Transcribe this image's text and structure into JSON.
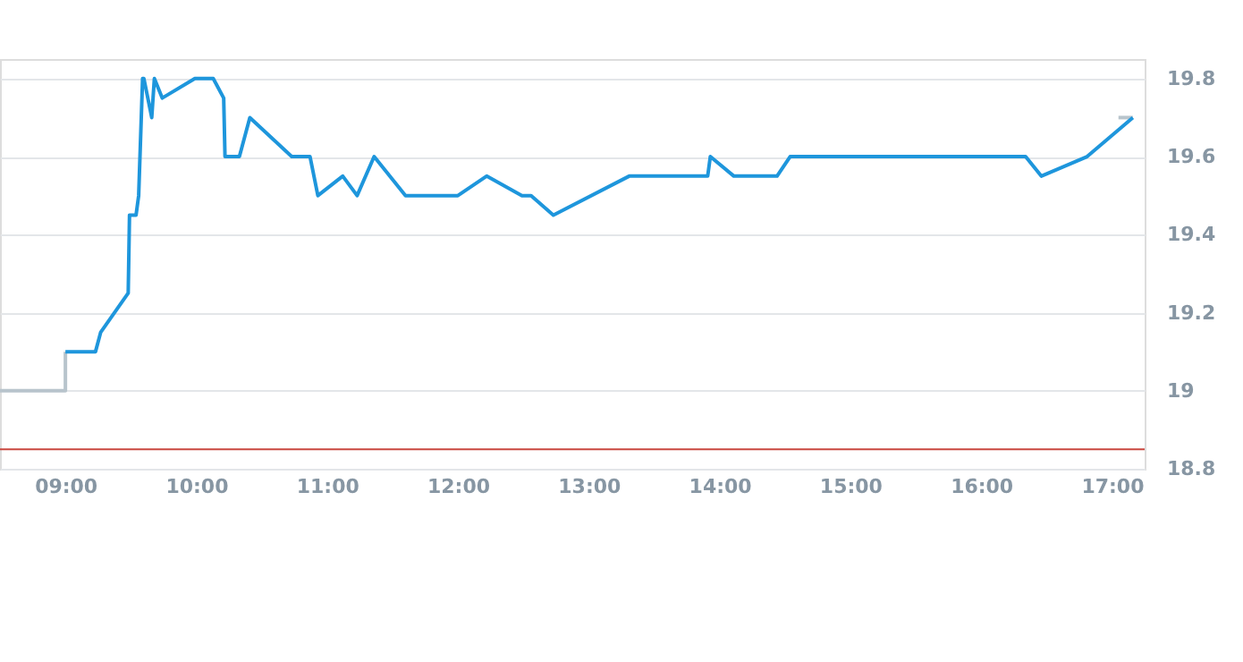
{
  "chart_data": {
    "type": "line",
    "series": [
      {
        "color": "#b8c4cc",
        "x": [
          8.5,
          9.0,
          9.0,
          null,
          17.05,
          17.16
        ],
        "values": [
          19.0,
          19.0,
          19.1,
          null,
          19.7,
          19.7
        ]
      },
      {
        "color": "#1e96dc",
        "x": [
          9.0,
          9.23,
          9.27,
          9.48,
          9.49,
          9.54,
          9.56,
          9.59,
          9.6,
          9.66,
          9.68,
          9.74,
          9.99,
          10.13,
          10.21,
          10.22,
          10.33,
          10.41,
          10.73,
          10.87,
          10.93,
          11.12,
          11.23,
          11.36,
          11.6,
          12.0,
          12.22,
          12.49,
          12.56,
          12.73,
          13.31,
          13.91,
          13.93,
          14.11,
          14.44,
          14.54,
          16.34,
          16.46,
          16.81,
          17.16
        ],
        "values": [
          19.1,
          19.1,
          19.15,
          19.25,
          19.45,
          19.45,
          19.5,
          19.8,
          19.8,
          19.7,
          19.8,
          19.75,
          19.8,
          19.8,
          19.75,
          19.6,
          19.6,
          19.7,
          19.6,
          19.6,
          19.5,
          19.55,
          19.5,
          19.6,
          19.5,
          19.5,
          19.55,
          19.5,
          19.5,
          19.45,
          19.55,
          19.55,
          19.6,
          19.55,
          19.55,
          19.6,
          19.6,
          19.55,
          19.6,
          19.7
        ]
      }
    ],
    "xlim": [
      8.5,
      17.25
    ],
    "xticks": [
      {
        "value": 9,
        "label": "09:00"
      },
      {
        "value": 10,
        "label": "10:00"
      },
      {
        "value": 11,
        "label": "11:00"
      },
      {
        "value": 12,
        "label": "12:00"
      },
      {
        "value": 13,
        "label": "13:00"
      },
      {
        "value": 14,
        "label": "14:00"
      },
      {
        "value": 15,
        "label": "15:00"
      },
      {
        "value": 16,
        "label": "16:00"
      },
      {
        "value": 17,
        "label": "17:00"
      }
    ],
    "ylim": [
      18.8,
      19.85
    ],
    "yticks": [
      18.8,
      19,
      19.2,
      19.4,
      19.6,
      19.8
    ],
    "ref_lines": [
      {
        "axis": "y",
        "value": 18.85,
        "color": "#c9473f"
      }
    ],
    "grid": "y",
    "marker": "none"
  }
}
